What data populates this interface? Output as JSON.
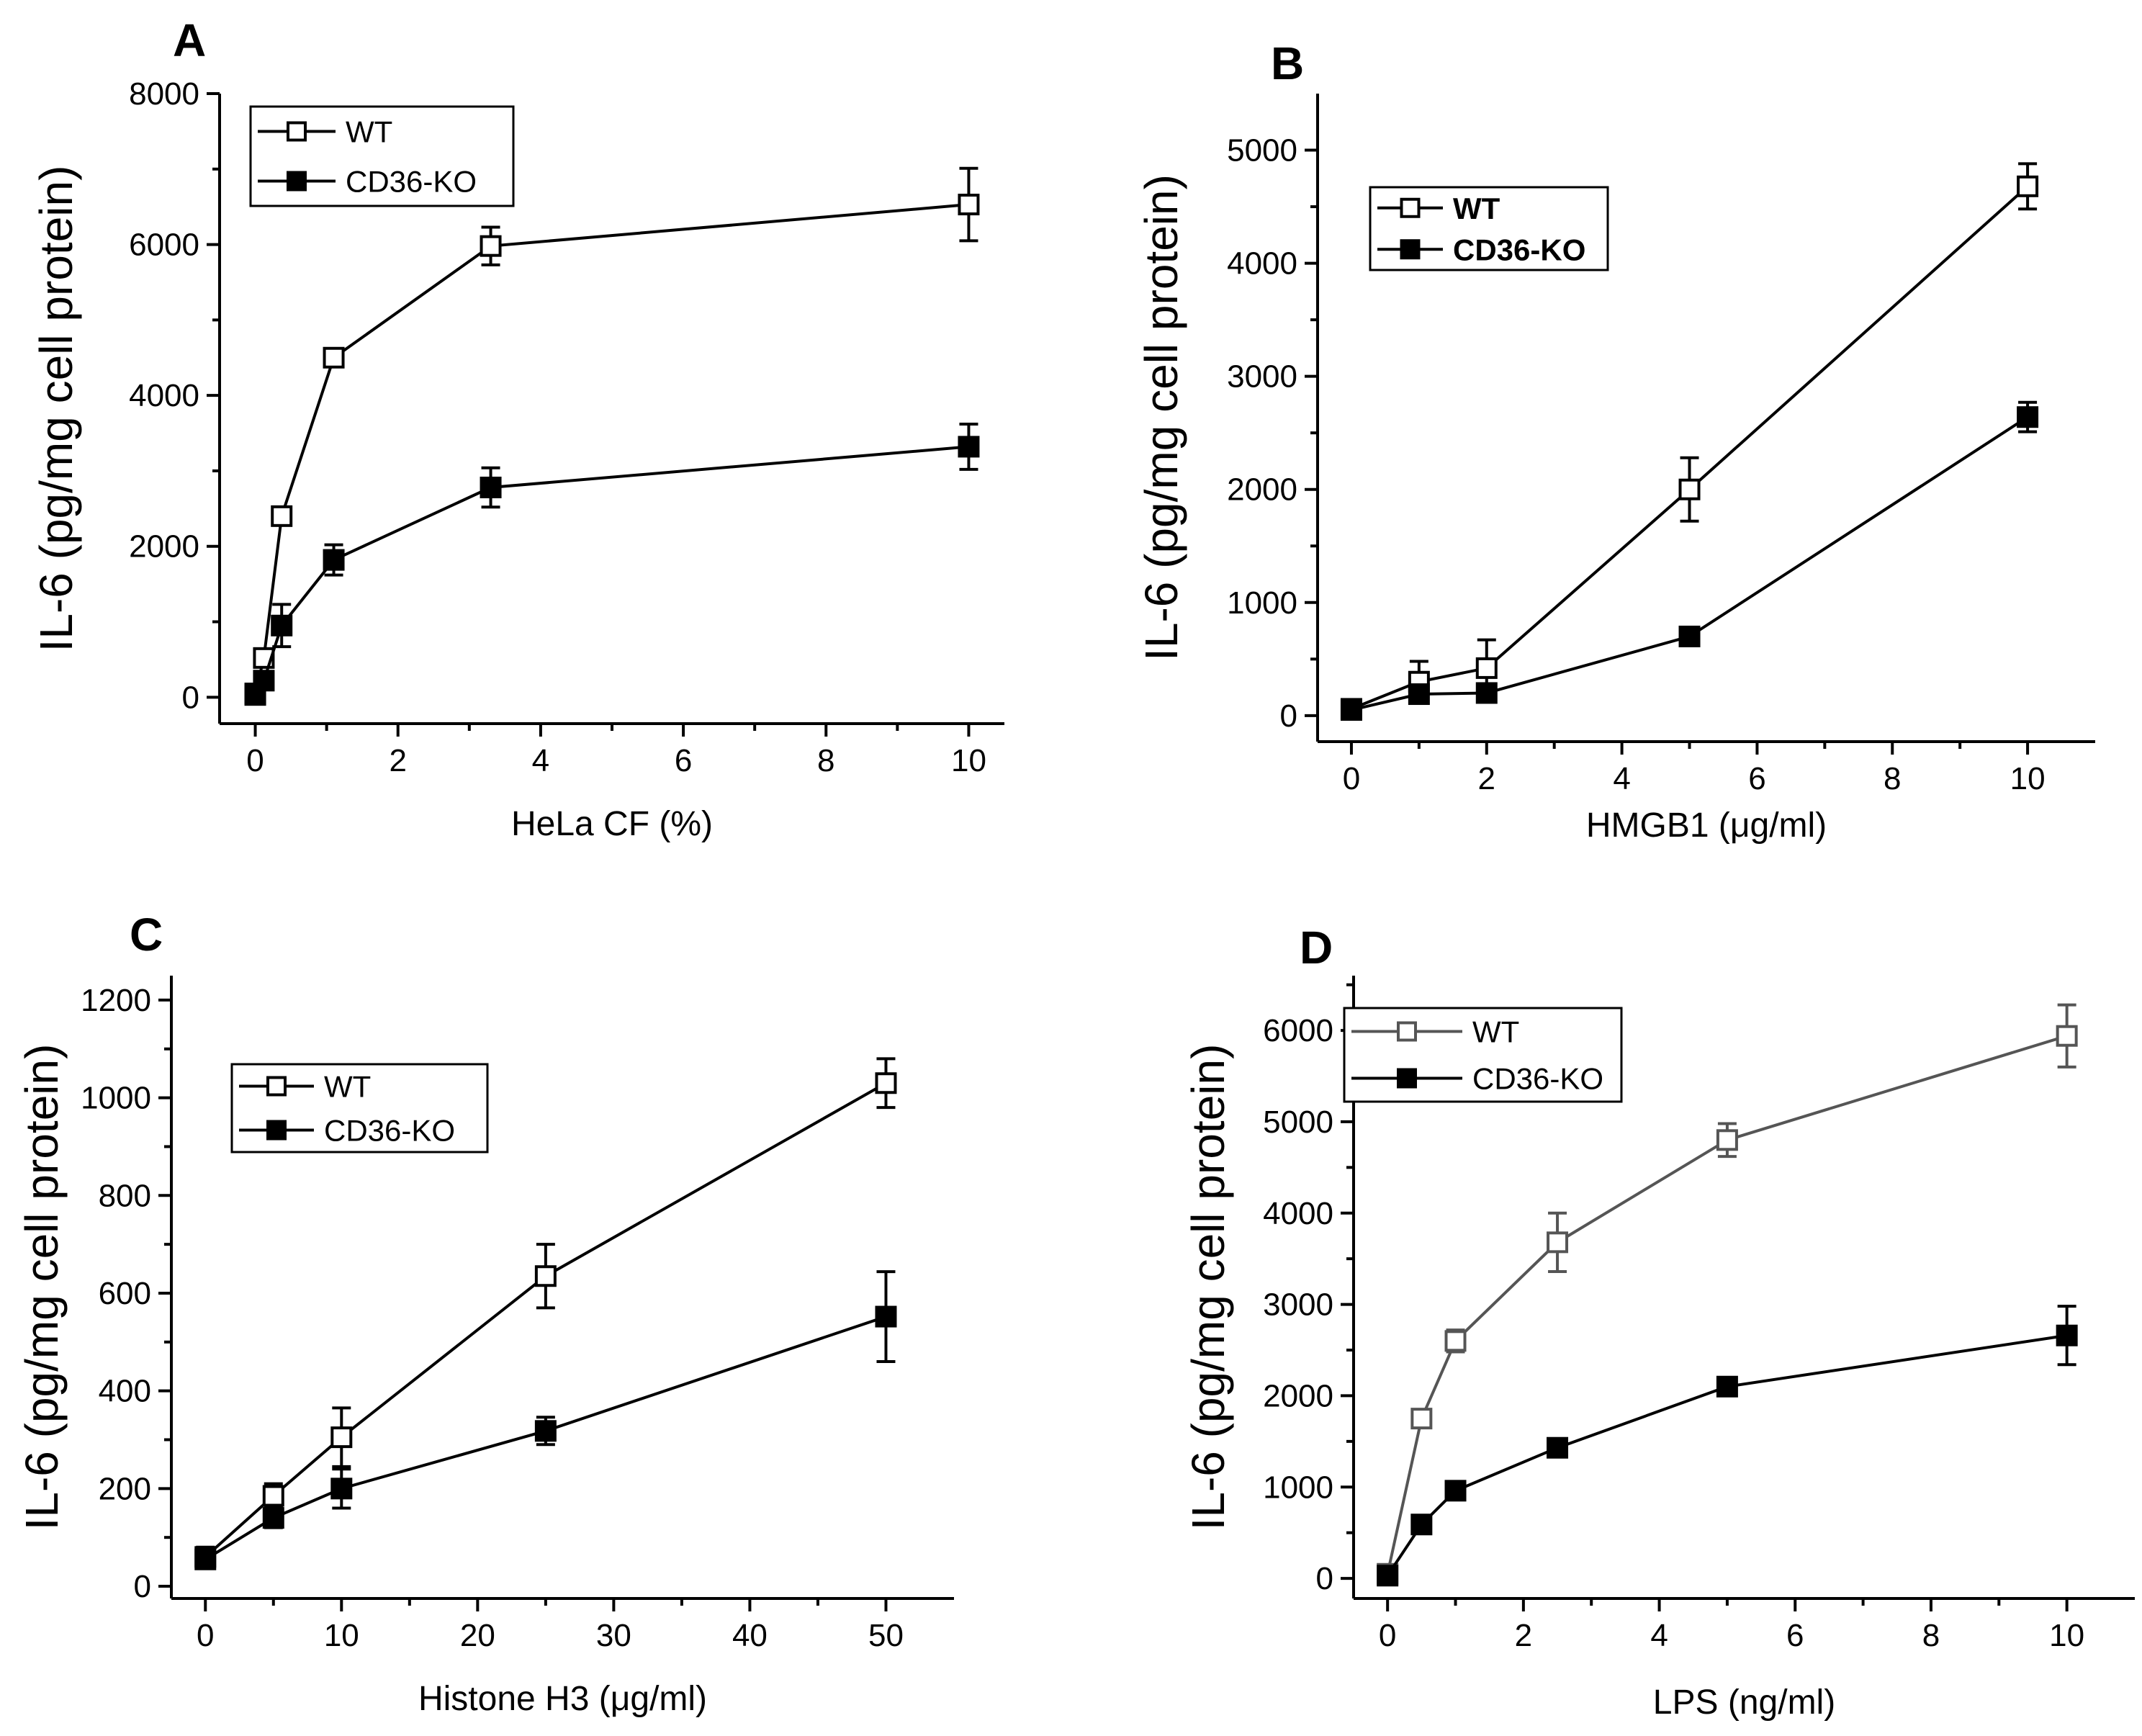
{
  "chart_data": [
    {
      "panel": "A",
      "type": "line",
      "xlabel": "HeLa CF (%)",
      "ylabel": "IL-6 (pg/mg cell protein)",
      "xlim": [
        -0.5,
        10.5
      ],
      "ylim": [
        -350,
        8000
      ],
      "xticks": [
        0,
        2,
        4,
        6,
        8,
        10
      ],
      "yticks": [
        0,
        2000,
        4000,
        6000,
        8000
      ],
      "legend_position": "top-left",
      "legend_bold": false,
      "series": [
        {
          "name": "WT",
          "marker": "open-square",
          "color": "#000000",
          "x": [
            0,
            0.12,
            0.37,
            1.1,
            3.3,
            10
          ],
          "y": [
            50,
            520,
            2400,
            4500,
            5980,
            6530
          ],
          "err": [
            60,
            80,
            100,
            70,
            250,
            480
          ]
        },
        {
          "name": "CD36-KO",
          "marker": "filled-square",
          "color": "#000000",
          "x": [
            0,
            0.12,
            0.37,
            1.1,
            3.3,
            10
          ],
          "y": [
            30,
            220,
            950,
            1820,
            2780,
            3320
          ],
          "err": [
            50,
            80,
            280,
            200,
            260,
            300
          ]
        }
      ]
    },
    {
      "panel": "B",
      "type": "line",
      "xlabel": "HMGB1 (μg/ml)",
      "ylabel": "IL-6 (pg/mg cell protein)",
      "xlim": [
        -0.5,
        11
      ],
      "ylim": [
        -230,
        5500
      ],
      "xticks": [
        0,
        2,
        4,
        6,
        8,
        10
      ],
      "yticks": [
        0,
        1000,
        2000,
        3000,
        4000,
        5000
      ],
      "legend_position": "top-left",
      "legend_bold": true,
      "series": [
        {
          "name": "WT",
          "marker": "open-square",
          "color": "#000000",
          "x": [
            0,
            1,
            2,
            5,
            10
          ],
          "y": [
            60,
            300,
            420,
            2000,
            4680
          ],
          "err": [
            40,
            180,
            250,
            280,
            200
          ]
        },
        {
          "name": "CD36-KO",
          "marker": "filled-square",
          "color": "#000000",
          "x": [
            0,
            1,
            2,
            5,
            10
          ],
          "y": [
            50,
            190,
            200,
            700,
            2640
          ],
          "err": [
            40,
            60,
            70,
            80,
            130
          ]
        }
      ]
    },
    {
      "panel": "C",
      "type": "line",
      "xlabel": "Histone H3 (μg/ml)",
      "ylabel": "IL-6 (pg/mg cell protein)",
      "xlim": [
        -2.5,
        55
      ],
      "ylim": [
        -25,
        1250
      ],
      "xticks": [
        0,
        10,
        20,
        30,
        40,
        50
      ],
      "yticks": [
        0,
        200,
        400,
        600,
        800,
        1000,
        1200
      ],
      "legend_position": "top-left",
      "legend_bold": false,
      "series": [
        {
          "name": "WT",
          "marker": "open-square",
          "color": "#000000",
          "x": [
            0,
            5,
            10,
            25,
            50
          ],
          "y": [
            60,
            185,
            305,
            635,
            1030
          ],
          "err": [
            20,
            25,
            60,
            65,
            50
          ]
        },
        {
          "name": "CD36-KO",
          "marker": "filled-square",
          "color": "#000000",
          "x": [
            0,
            5,
            10,
            25,
            50
          ],
          "y": [
            55,
            140,
            200,
            318,
            552
          ],
          "err": [
            15,
            20,
            40,
            28,
            92
          ]
        }
      ]
    },
    {
      "panel": "D",
      "type": "line",
      "xlabel": "LPS (ng/ml)",
      "ylabel": "IL-6 (pg/mg cell protein)",
      "xlim": [
        -0.5,
        11
      ],
      "ylim": [
        -220,
        6600
      ],
      "xticks": [
        0,
        2,
        4,
        6,
        8,
        10
      ],
      "yticks": [
        0,
        1000,
        2000,
        3000,
        4000,
        5000,
        6000
      ],
      "legend_position": "top-left",
      "legend_bold": false,
      "series": [
        {
          "name": "WT",
          "marker": "open-square",
          "color": "#555555",
          "x": [
            0,
            0.5,
            1,
            2.5,
            5,
            10
          ],
          "y": [
            50,
            1750,
            2600,
            3680,
            4800,
            5940
          ],
          "err": [
            40,
            70,
            120,
            320,
            180,
            340
          ]
        },
        {
          "name": "CD36-KO",
          "marker": "filled-square",
          "color": "#000000",
          "x": [
            0,
            0.5,
            1,
            2.5,
            5,
            10
          ],
          "y": [
            30,
            590,
            960,
            1430,
            2100,
            2660
          ],
          "err": [
            40,
            90,
            60,
            90,
            70,
            320
          ]
        }
      ]
    }
  ]
}
